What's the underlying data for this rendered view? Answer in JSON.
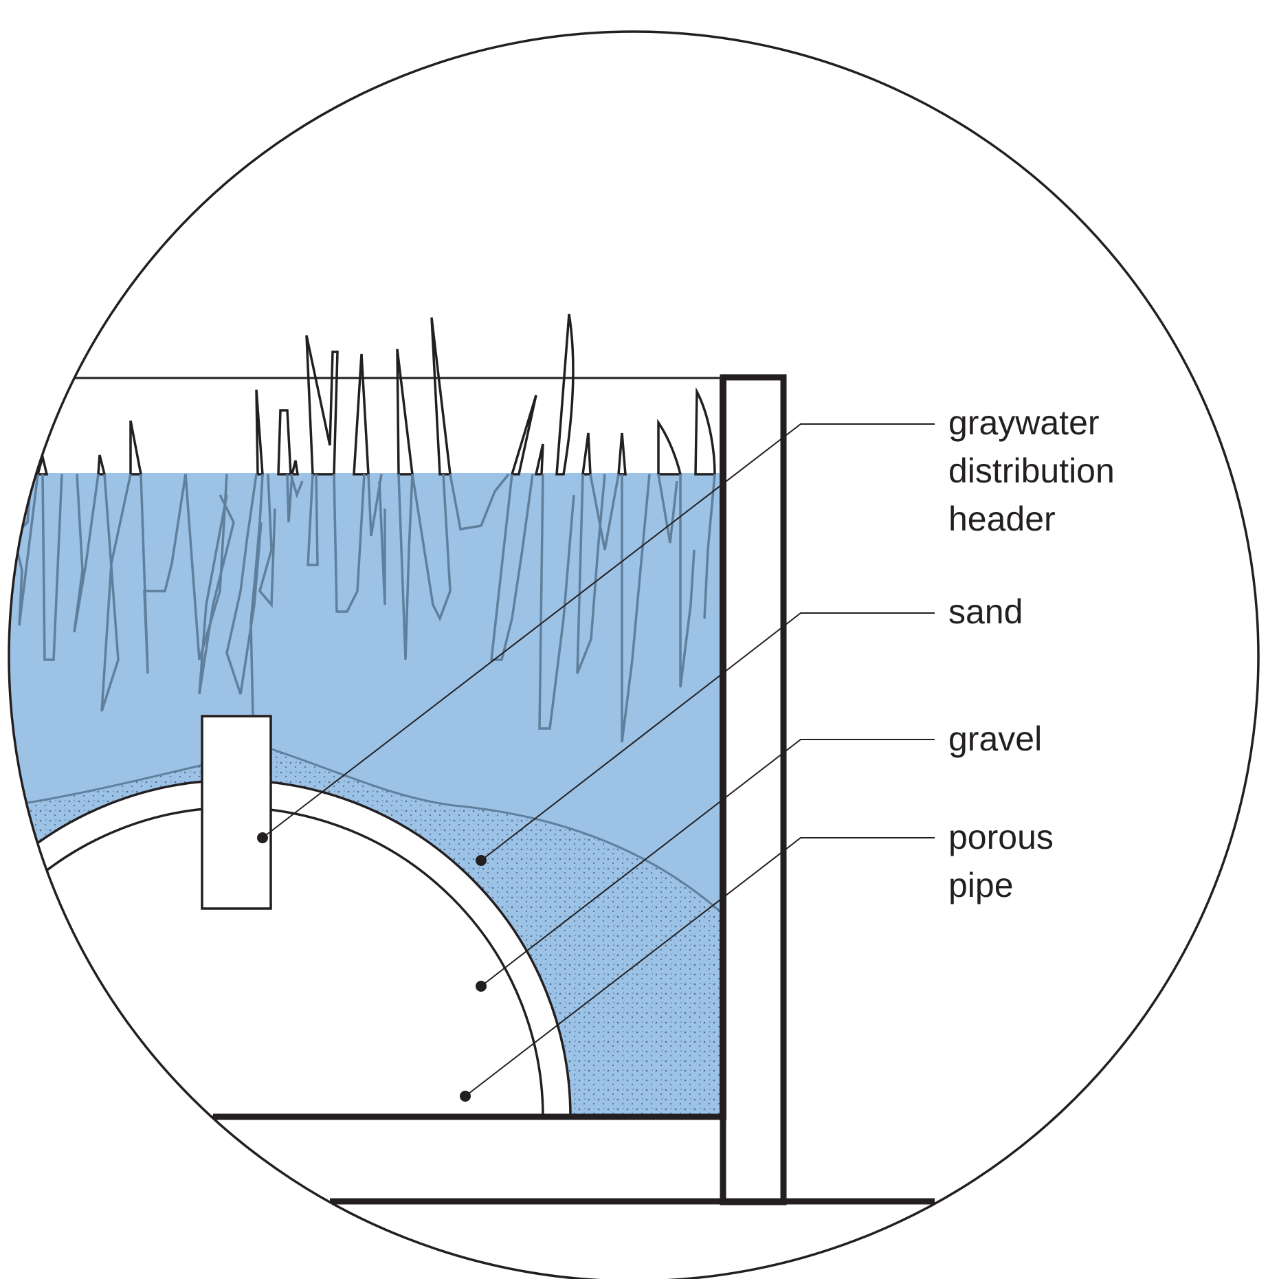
{
  "diagram": {
    "colors": {
      "water": "#9cc2e5",
      "outline": "#231f20",
      "grass_submerged": "#5f7f9c",
      "sand_dots": "#4f6f9a",
      "paper": "#ffffff"
    },
    "labels": [
      {
        "id": "graywater-distribution-header",
        "lines": [
          "graywater",
          "distribution",
          "header"
        ]
      },
      {
        "id": "sand",
        "lines": [
          "sand"
        ]
      },
      {
        "id": "gravel",
        "lines": [
          "gravel"
        ]
      },
      {
        "id": "porous-pipe",
        "lines": [
          "porous",
          "pipe"
        ]
      }
    ]
  }
}
